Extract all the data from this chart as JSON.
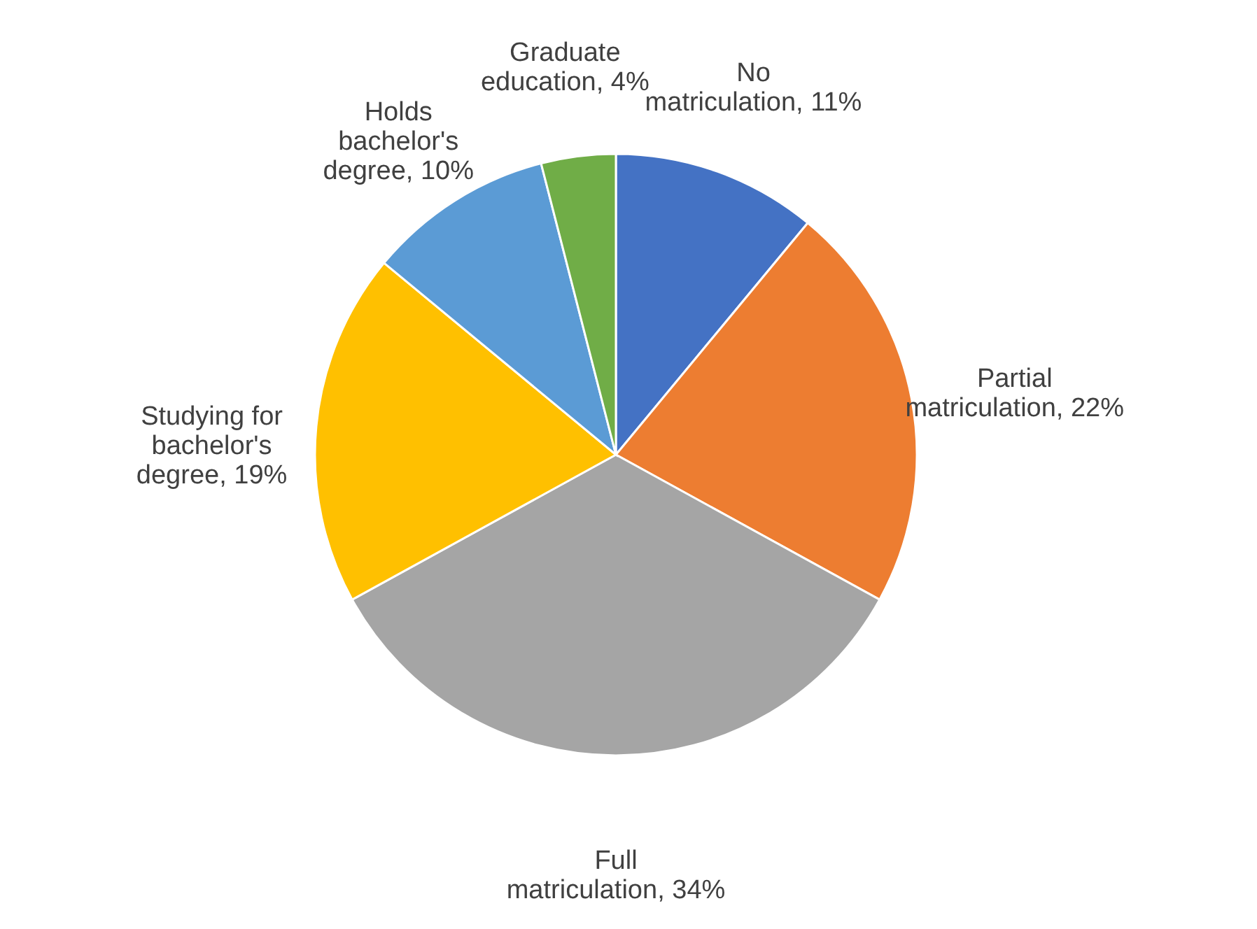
{
  "chart_data": {
    "type": "pie",
    "categories": [
      "No matriculation",
      "Partial matriculation",
      "Full matriculation",
      "Studying for bachelor's degree",
      "Holds bachelor's degree",
      "Graduate education"
    ],
    "values": [
      11,
      22,
      34,
      19,
      10,
      4
    ],
    "value_labels": [
      "11%",
      "22%",
      "34%",
      "19%",
      "10%",
      "4%"
    ],
    "colors": [
      "#4472c4",
      "#ed7d31",
      "#a5a5a5",
      "#ffc000",
      "#5b9bd5",
      "#70ad47"
    ],
    "legend": false
  }
}
